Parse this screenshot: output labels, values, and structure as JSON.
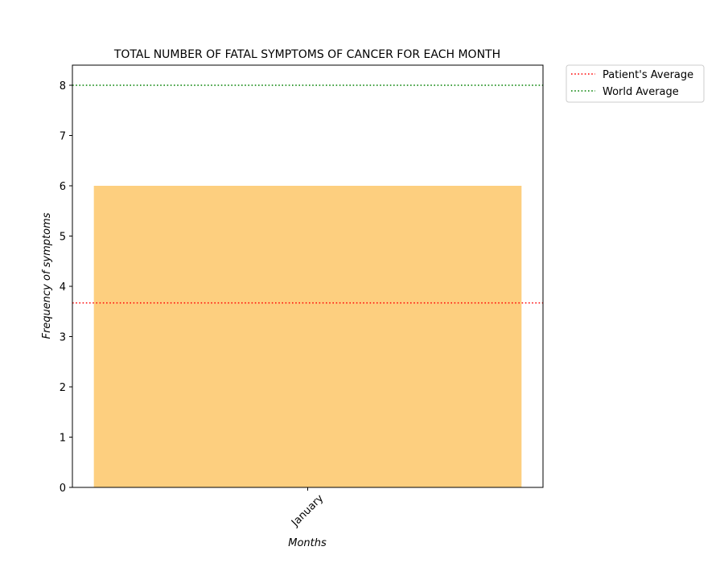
{
  "chart_data": {
    "type": "bar",
    "title": "TOTAL NUMBER OF FATAL SYMPTOMS OF CANCER FOR EACH MONTH",
    "xlabel": "Months",
    "ylabel": "Frequency of symptoms",
    "categories": [
      "January"
    ],
    "values": [
      6
    ],
    "bar_color": "#fdcf7f",
    "ylim": [
      0,
      8.4
    ],
    "yticks": [
      0,
      1,
      2,
      3,
      4,
      5,
      6,
      7,
      8
    ],
    "grid": false,
    "reference_lines": [
      {
        "name": "Patient's Average",
        "value": 3.67,
        "color": "#ff0000",
        "style": "dotted"
      },
      {
        "name": "World Average",
        "value": 8,
        "color": "#008000",
        "style": "dotted"
      }
    ],
    "legend_position": "outside upper right"
  }
}
